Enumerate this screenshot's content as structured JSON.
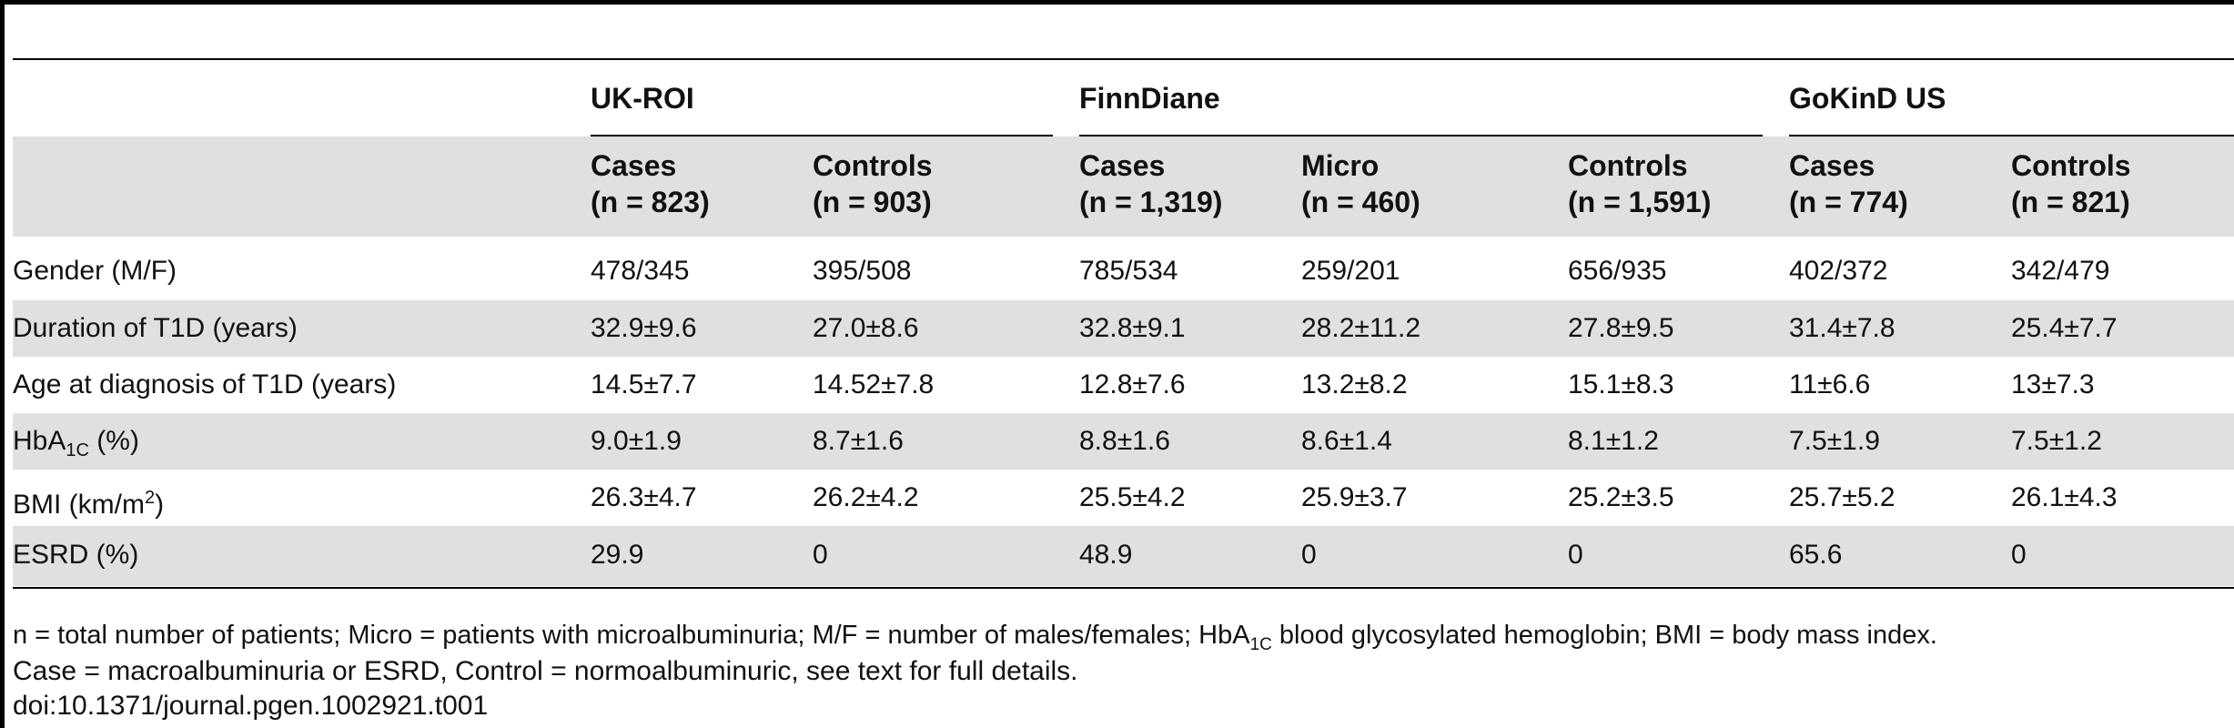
{
  "table": {
    "groups": [
      "UK-ROI",
      "FinnDiane",
      "GoKinD US"
    ],
    "columns": [
      {
        "line1": "Cases",
        "line2": "(n = 823)"
      },
      {
        "line1": "Controls",
        "line2": "(n = 903)"
      },
      {
        "line1": "Cases",
        "line2": "(n = 1,319)"
      },
      {
        "line1": "Micro",
        "line2": "(n = 460)"
      },
      {
        "line1": "Controls",
        "line2": "(n = 1,591)"
      },
      {
        "line1": "Cases",
        "line2": "(n = 774)"
      },
      {
        "line1": "Controls",
        "line2": "(n = 821)"
      }
    ],
    "rows": [
      {
        "label": "Gender (M/F)",
        "values": [
          "478/345",
          "395/508",
          "785/534",
          "259/201",
          "656/935",
          "402/372",
          "342/479"
        ]
      },
      {
        "label": "Duration of T1D (years)",
        "values": [
          "32.9±9.6",
          "27.0±8.6",
          "32.8±9.1",
          "28.2±11.2",
          "27.8±9.5",
          "31.4±7.8",
          "25.4±7.7"
        ]
      },
      {
        "label": "Age at diagnosis of T1D (years)",
        "values": [
          "14.5±7.7",
          "14.52±7.8",
          "12.8±7.6",
          "13.2±8.2",
          "15.1±8.3",
          "11±6.6",
          "13±7.3"
        ]
      },
      {
        "label_main": "HbA",
        "label_sub": "1C",
        "label_tail": " (%)",
        "values": [
          "9.0±1.9",
          "8.7±1.6",
          "8.8±1.6",
          "8.6±1.4",
          "8.1±1.2",
          "7.5±1.9",
          "7.5±1.2"
        ]
      },
      {
        "label_main": "BMI (km/m",
        "label_sup": "2",
        "label_tail": ")",
        "values": [
          "26.3±4.7",
          "26.2±4.2",
          "25.5±4.2",
          "25.9±3.7",
          "25.2±3.5",
          "25.7±5.2",
          "26.1±4.3"
        ]
      },
      {
        "label": "ESRD (%)",
        "values": [
          "29.9",
          "0",
          "48.9",
          "0",
          "0",
          "65.6",
          "0"
        ]
      }
    ]
  },
  "footnote": {
    "line1_a": "n = total number of patients; Micro = patients with microalbuminuria; M/F = number of males/females; HbA",
    "line1_sub": "1C",
    "line1_b": " blood glycosylated hemoglobin; BMI = body mass index.",
    "line2": "Case = macroalbuminuria or ESRD, Control = normoalbuminuric, see text for full details.",
    "line3": "doi:10.1371/journal.pgen.1002921.t001"
  }
}
